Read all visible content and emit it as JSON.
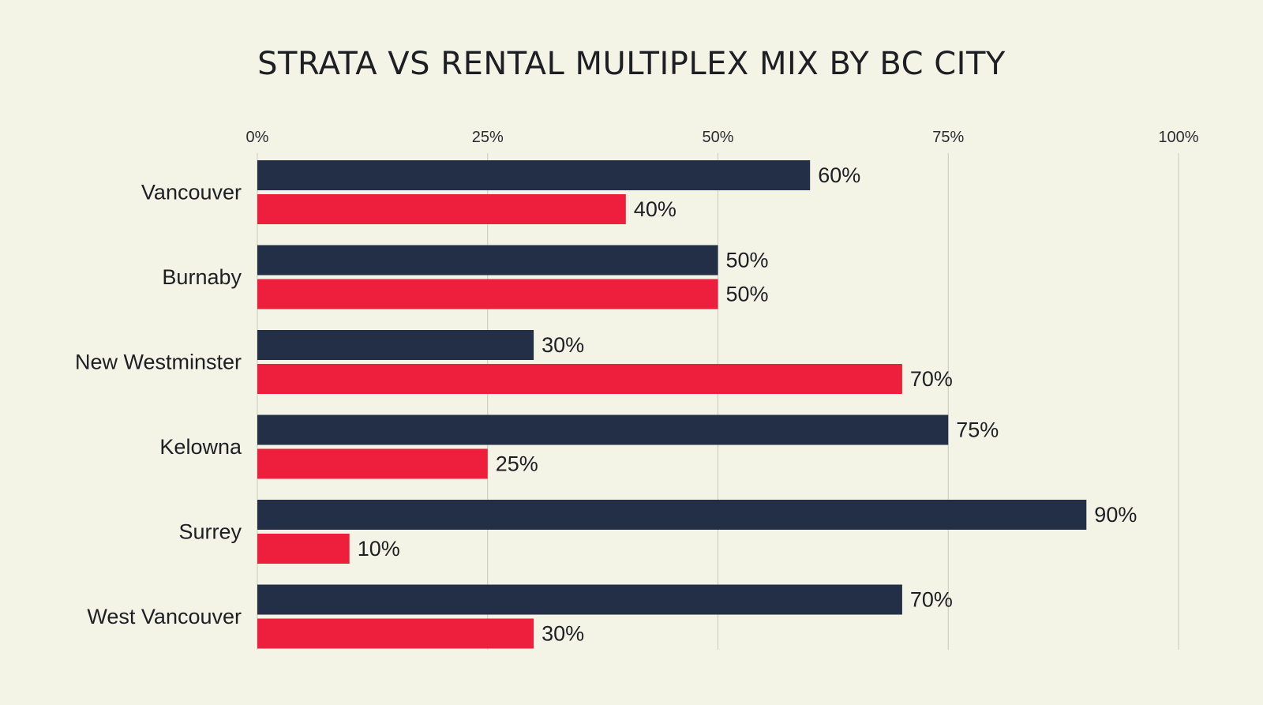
{
  "chart_data": {
    "type": "bar",
    "orientation": "horizontal",
    "title": "STRATA VS RENTAL MULTIPLEX MIX BY BC CITY",
    "xlabel": "",
    "ylabel": "",
    "xlim": [
      0,
      100
    ],
    "x_ticks": [
      0,
      25,
      50,
      75,
      100
    ],
    "x_tick_labels": [
      "0%",
      "25%",
      "50%",
      "75%",
      "100%"
    ],
    "x_axis_position": "top",
    "grid": true,
    "legend": "none",
    "categories": [
      "Vancouver",
      "Burnaby",
      "New Westminster",
      "Kelowna",
      "Surrey",
      "West Vancouver"
    ],
    "series": [
      {
        "color": "#222f47",
        "values": [
          60,
          50,
          30,
          75,
          90,
          70
        ],
        "labels": [
          "60%",
          "50%",
          "30%",
          "75%",
          "90%",
          "70%"
        ]
      },
      {
        "color": "#ee1f3d",
        "values": [
          40,
          50,
          70,
          25,
          10,
          30
        ],
        "labels": [
          "40%",
          "50%",
          "70%",
          "25%",
          "10%",
          "30%"
        ]
      }
    ]
  }
}
